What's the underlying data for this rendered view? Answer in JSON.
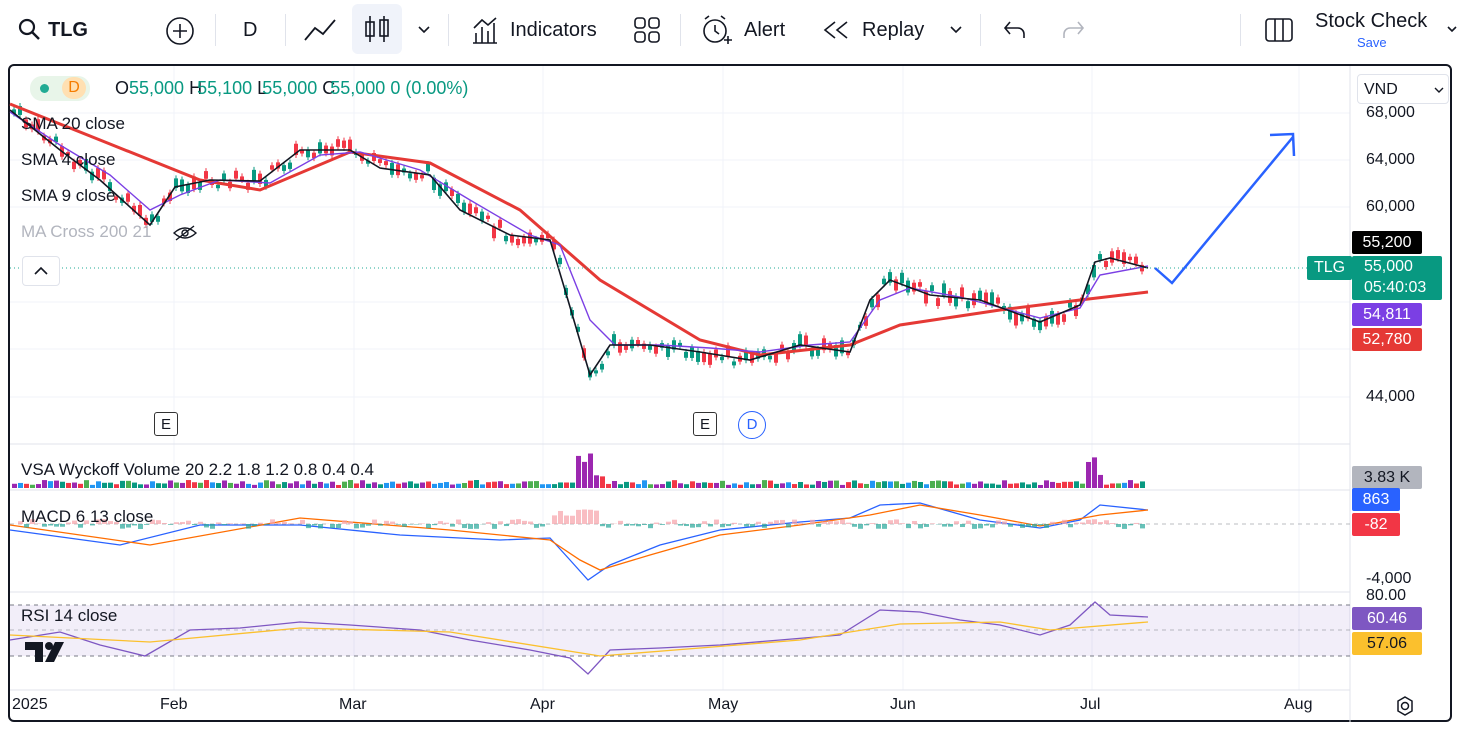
{
  "toolbar": {
    "symbol": "TLG",
    "interval": "D",
    "indicators": "Indicators",
    "alert": "Alert",
    "replay": "Replay",
    "layout_name": "Stock Check",
    "save": "Save"
  },
  "legend": {
    "interval": "D",
    "open_label": "O",
    "open": "55,000",
    "high_label": "H",
    "high": "55,100",
    "low_label": "L",
    "low": "55,000",
    "close_label": "C",
    "close": "55,000",
    "change": "0 (0.00%)"
  },
  "studies": [
    "SMA 20 close",
    "SMA 4 close",
    "SMA 9 close",
    "MA Cross 200 21"
  ],
  "currency": "VND",
  "price_axis": [
    "68,000",
    "64,000",
    "60,000",
    "44,000"
  ],
  "price_tags": {
    "high": "55,200",
    "symbol": "TLG",
    "last": "55,000",
    "countdown": "05:40:03",
    "sma_fast": "54,811",
    "sma_slow": "52,780"
  },
  "events": [
    "E",
    "E",
    "D"
  ],
  "volume": {
    "label": "VSA Wyckoff Volume 20 2.2 1.8 1.2 0.8 0.4 0.4",
    "tag": "3.83 K"
  },
  "macd": {
    "label": "MACD 6 13 close",
    "tag_macd": "863",
    "tag_hist": "-82",
    "axis": "-4,000"
  },
  "rsi": {
    "label": "RSI 14 close",
    "axis": "80.00",
    "tag_rsi": "60.46",
    "tag_ma": "57.06"
  },
  "time_axis": [
    "2025",
    "Feb",
    "Mar",
    "Apr",
    "May",
    "Jun",
    "Jul",
    "Aug"
  ]
}
